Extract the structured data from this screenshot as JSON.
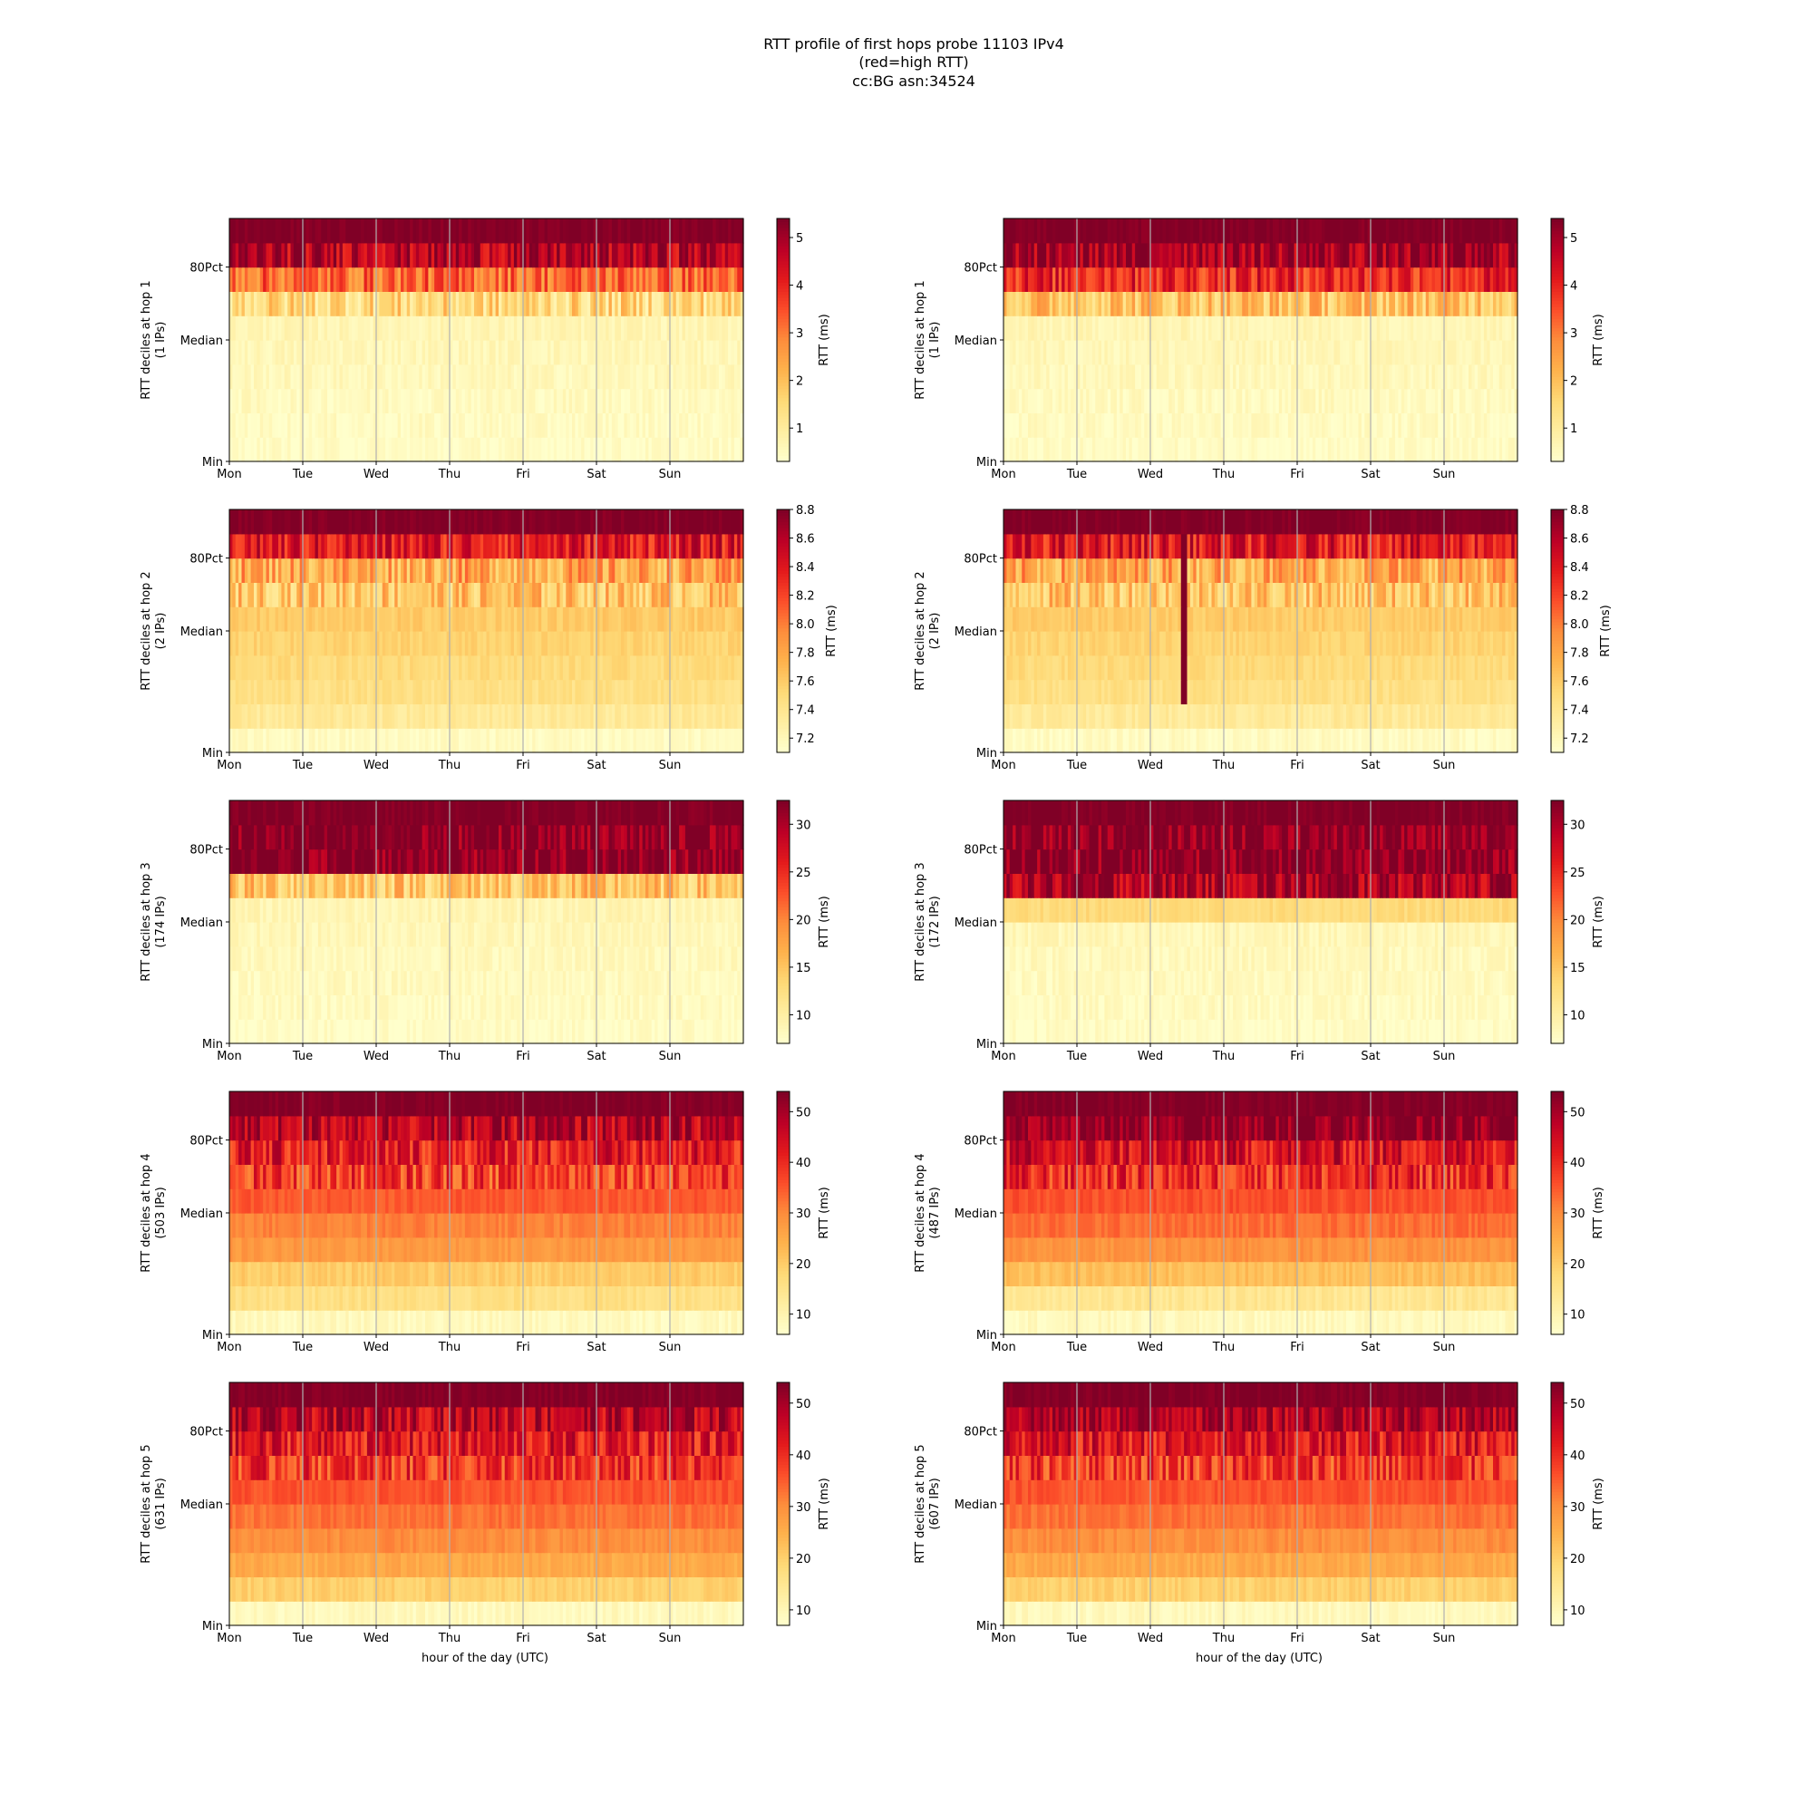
{
  "figure": {
    "title_lines": [
      "RTT profile of first hops probe 11103 IPv4",
      "(red=high RTT)",
      "cc:BG asn:34524"
    ],
    "xlabel": "hour of the day (UTC)",
    "colorbar_label": "RTT (ms)",
    "x_ticks": [
      "Mon",
      "Tue",
      "Wed",
      "Thu",
      "Fri",
      "Sat",
      "Sun"
    ],
    "y_ticks": [
      "80Pct",
      "Median",
      "Min"
    ]
  },
  "chart_data": [
    {
      "type": "heatmap",
      "column": "left",
      "ylabel_line1": "RTT deciles at hop 1",
      "ylabel_line2": "(1 IPs)",
      "colorbar_ticks": [
        "1",
        "2",
        "3",
        "4",
        "5"
      ],
      "clim": [
        0.3,
        5.4
      ],
      "colorbar_tick_values": [
        1,
        2,
        3,
        4,
        5
      ],
      "decile_profile": [
        0.4,
        0.45,
        0.5,
        0.55,
        0.6,
        0.65,
        1.5,
        3.2,
        4.8,
        5.4
      ],
      "spikes": []
    },
    {
      "type": "heatmap",
      "column": "right",
      "ylabel_line1": "RTT deciles at hop 1",
      "ylabel_line2": "(1 IPs)",
      "colorbar_ticks": [
        "1",
        "2",
        "3",
        "4",
        "5"
      ],
      "clim": [
        0.3,
        5.4
      ],
      "colorbar_tick_values": [
        1,
        2,
        3,
        4,
        5
      ],
      "decile_profile": [
        0.4,
        0.45,
        0.5,
        0.55,
        0.6,
        0.65,
        2.0,
        4.0,
        5.0,
        5.4
      ],
      "spikes": []
    },
    {
      "type": "heatmap",
      "column": "left",
      "ylabel_line1": "RTT deciles at hop 2",
      "ylabel_line2": "(2 IPs)",
      "colorbar_ticks": [
        "7.2",
        "7.4",
        "7.6",
        "7.8",
        "8.0",
        "8.2",
        "8.4",
        "8.6",
        "8.8"
      ],
      "clim": [
        7.1,
        8.8
      ],
      "colorbar_tick_values": [
        7.2,
        7.4,
        7.6,
        7.8,
        8.0,
        8.2,
        8.4,
        8.6,
        8.8
      ],
      "decile_profile": [
        7.15,
        7.35,
        7.45,
        7.5,
        7.55,
        7.6,
        7.65,
        7.8,
        8.4,
        8.8
      ],
      "spikes": []
    },
    {
      "type": "heatmap",
      "column": "right",
      "ylabel_line1": "RTT deciles at hop 2",
      "ylabel_line2": "(2 IPs)",
      "colorbar_ticks": [
        "7.2",
        "7.4",
        "7.6",
        "7.8",
        "8.0",
        "8.2",
        "8.4",
        "8.6",
        "8.8"
      ],
      "clim": [
        7.1,
        8.8
      ],
      "colorbar_tick_values": [
        7.2,
        7.4,
        7.6,
        7.8,
        8.0,
        8.2,
        8.4,
        8.6,
        8.8
      ],
      "decile_profile": [
        7.15,
        7.35,
        7.45,
        7.5,
        7.55,
        7.6,
        7.65,
        7.8,
        8.4,
        8.8
      ],
      "spikes": [
        {
          "day": 2.42,
          "min_decile": 2,
          "max_decile": 8,
          "value": 8.8
        }
      ]
    },
    {
      "type": "heatmap",
      "column": "left",
      "ylabel_line1": "RTT deciles at hop 3",
      "ylabel_line2": "(174 IPs)",
      "colorbar_ticks": [
        "10",
        "15",
        "20",
        "25",
        "30"
      ],
      "clim": [
        7,
        32.5
      ],
      "colorbar_tick_values": [
        10,
        15,
        20,
        25,
        30
      ],
      "decile_profile": [
        7.5,
        7.8,
        8.0,
        8.2,
        8.5,
        8.8,
        15,
        32.5,
        32.5,
        32.5
      ],
      "spikes": []
    },
    {
      "type": "heatmap",
      "column": "right",
      "ylabel_line1": "RTT deciles at hop 3",
      "ylabel_line2": "(172 IPs)",
      "colorbar_ticks": [
        "10",
        "15",
        "20",
        "25",
        "30"
      ],
      "clim": [
        7,
        32.5
      ],
      "colorbar_tick_values": [
        10,
        15,
        20,
        25,
        30
      ],
      "decile_profile": [
        7.5,
        7.8,
        8.0,
        8.2,
        8.5,
        13,
        30,
        32.5,
        32.5,
        32.5
      ],
      "spikes": []
    },
    {
      "type": "heatmap",
      "column": "left",
      "ylabel_line1": "RTT deciles at hop 4",
      "ylabel_line2": "(503 IPs)",
      "colorbar_ticks": [
        "10",
        "20",
        "30",
        "40",
        "50"
      ],
      "clim": [
        6,
        54
      ],
      "colorbar_tick_values": [
        10,
        20,
        30,
        40,
        50
      ],
      "decile_profile": [
        8,
        16,
        20,
        28,
        31,
        35,
        38,
        42,
        48,
        54
      ],
      "spikes": []
    },
    {
      "type": "heatmap",
      "column": "right",
      "ylabel_line1": "RTT deciles at hop 4",
      "ylabel_line2": "(487 IPs)",
      "colorbar_ticks": [
        "10",
        "20",
        "30",
        "40",
        "50"
      ],
      "clim": [
        6,
        54
      ],
      "colorbar_tick_values": [
        10,
        20,
        30,
        40,
        50
      ],
      "decile_profile": [
        8,
        14,
        22,
        29,
        33,
        36,
        40,
        44,
        54,
        54
      ],
      "spikes": []
    },
    {
      "type": "heatmap",
      "column": "left",
      "ylabel_line1": "RTT deciles at hop 5",
      "ylabel_line2": "(631 IPs)",
      "colorbar_ticks": [
        "10",
        "20",
        "30",
        "40",
        "50"
      ],
      "clim": [
        7,
        54
      ],
      "colorbar_tick_values": [
        10,
        20,
        30,
        40,
        50
      ],
      "decile_profile": [
        9,
        20,
        26,
        30,
        33,
        36,
        39,
        43,
        48,
        54
      ],
      "spikes": []
    },
    {
      "type": "heatmap",
      "column": "right",
      "ylabel_line1": "RTT deciles at hop 5",
      "ylabel_line2": "(607 IPs)",
      "colorbar_ticks": [
        "10",
        "20",
        "30",
        "40",
        "50"
      ],
      "clim": [
        7,
        54
      ],
      "colorbar_tick_values": [
        10,
        20,
        30,
        40,
        50
      ],
      "decile_profile": [
        9,
        20,
        26,
        30,
        33,
        36,
        39,
        43,
        50,
        54
      ],
      "spikes": []
    }
  ]
}
